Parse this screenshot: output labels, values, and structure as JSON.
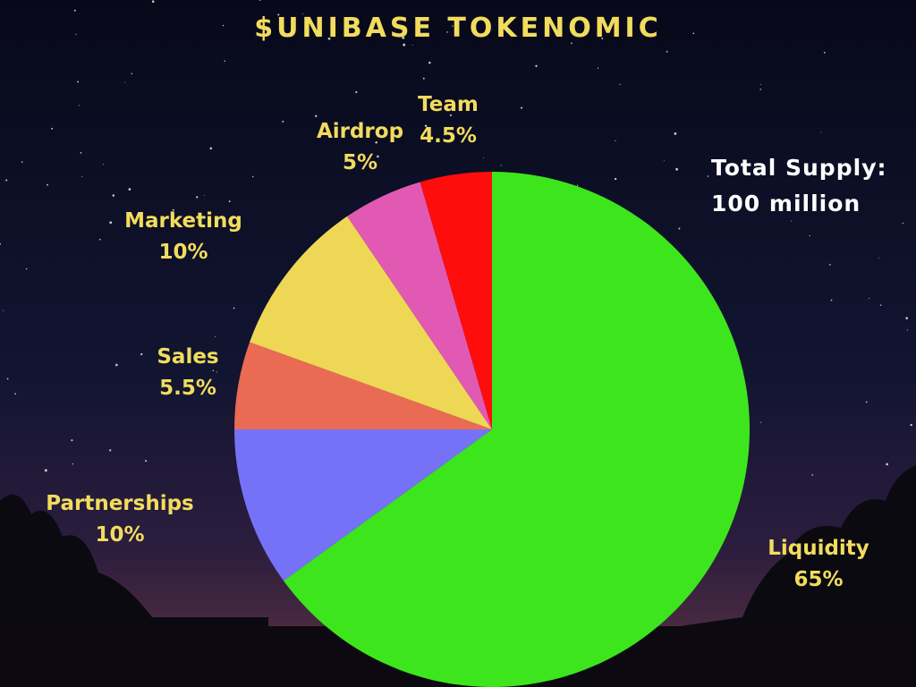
{
  "colors": {
    "title": "#f2dc5d",
    "label": "#f2dc5d",
    "supply_text": "#ffffff"
  },
  "chart_data": {
    "type": "pie",
    "title": "$UNIBASE TOKENOMIC",
    "annotation": [
      "Total Supply:",
      "100 million"
    ],
    "slices": [
      {
        "label": "Liquidity",
        "value_label": "65%",
        "value": 65,
        "color": "#3de51d"
      },
      {
        "label": "Partnerships",
        "value_label": "10%",
        "value": 10,
        "color": "#7672f7"
      },
      {
        "label": "Sales",
        "value_label": "5.5%",
        "value": 5.5,
        "color": "#e96b54"
      },
      {
        "label": "Marketing",
        "value_label": "10%",
        "value": 10,
        "color": "#efd756"
      },
      {
        "label": "Airdrop",
        "value_label": "5%",
        "value": 5,
        "color": "#e259b3"
      },
      {
        "label": "Team",
        "value_label": "4.5%",
        "value": 4.5,
        "color": "#ff0d0d"
      }
    ]
  }
}
